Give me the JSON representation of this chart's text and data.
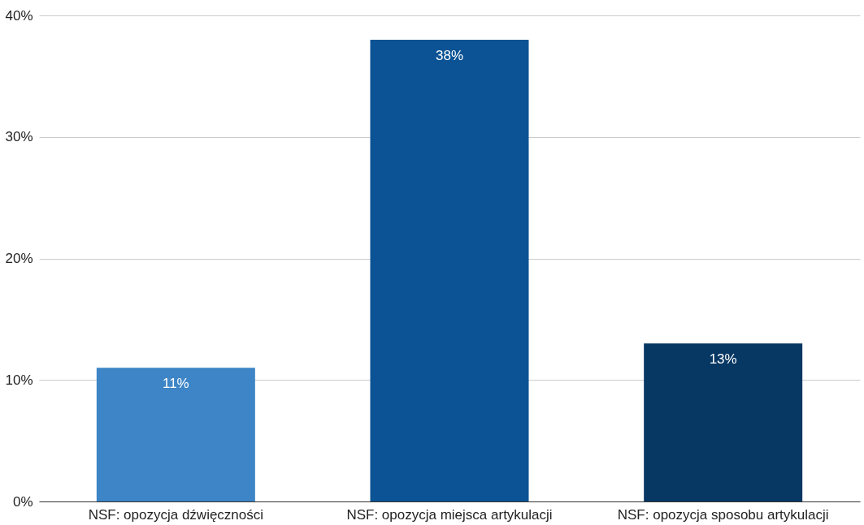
{
  "chart_data": {
    "type": "bar",
    "categories": [
      "NSF: opozycja dźwięczności",
      "NSF: opozycja miejsca artykulacji",
      "NSF: opozycja sposobu artykulacji"
    ],
    "values": [
      11,
      38,
      13
    ],
    "colors": [
      "#3d85c6",
      "#0b5394",
      "#073763"
    ],
    "value_labels": [
      "11%",
      "38%",
      "13%"
    ],
    "ylim": [
      0,
      40
    ],
    "yticks": [
      {
        "value": 0,
        "label": "0%"
      },
      {
        "value": 10,
        "label": "10%"
      },
      {
        "value": 20,
        "label": "20%"
      },
      {
        "value": 30,
        "label": "30%"
      },
      {
        "value": 40,
        "label": "40%"
      }
    ],
    "grid": "y"
  }
}
